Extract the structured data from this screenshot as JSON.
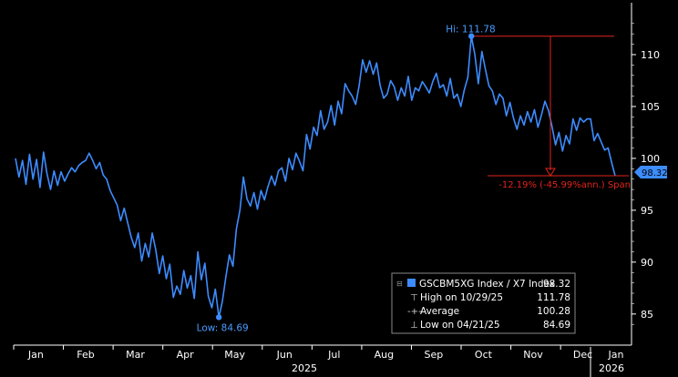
{
  "chart_data": {
    "type": "line",
    "ylim": [
      82,
      115
    ],
    "y_ticks": [
      "110",
      "105",
      "100",
      "95",
      "90",
      "85"
    ],
    "x_ticks": [
      "Jan",
      "Feb",
      "Mar",
      "Apr",
      "May",
      "Jun",
      "Jul",
      "Aug",
      "Sep",
      "Oct",
      "Nov",
      "Dec",
      "Jan"
    ],
    "year_labels": [
      "2025",
      "2026"
    ],
    "last_value_label": "98.32",
    "series": [
      {
        "name": "GSCBM5XG Index / X7 Index",
        "values": [
          100.0,
          98.2,
          99.8,
          97.5,
          100.4,
          98.0,
          99.9,
          97.2,
          100.6,
          98.5,
          97.0,
          98.8,
          97.4,
          98.7,
          97.8,
          98.5,
          99.1,
          98.7,
          99.3,
          99.6,
          99.8,
          100.5,
          99.8,
          99.0,
          99.6,
          98.4,
          98.0,
          96.9,
          96.2,
          95.5,
          94.0,
          95.2,
          93.8,
          92.4,
          91.4,
          92.8,
          90.1,
          91.8,
          90.5,
          92.8,
          91.2,
          88.9,
          90.6,
          88.4,
          89.8,
          86.6,
          87.7,
          86.9,
          89.2,
          87.5,
          88.7,
          86.5,
          91.0,
          88.3,
          89.9,
          86.7,
          85.6,
          87.4,
          84.69,
          86.2,
          88.6,
          90.7,
          89.6,
          93.2,
          95.0,
          98.2,
          96.1,
          95.4,
          96.7,
          95.1,
          96.9,
          96.0,
          97.3,
          98.3,
          97.4,
          98.8,
          99.1,
          97.8,
          100.0,
          98.9,
          100.5,
          99.7,
          98.8,
          102.3,
          100.9,
          103.0,
          102.2,
          104.6,
          102.8,
          103.5,
          105.1,
          103.2,
          105.5,
          104.3,
          107.2,
          106.5,
          106.0,
          105.2,
          107.0,
          109.5,
          108.3,
          109.4,
          108.1,
          109.2,
          107.0,
          105.8,
          106.2,
          107.5,
          106.9,
          105.6,
          106.8,
          106.0,
          107.9,
          105.6,
          106.8,
          106.5,
          107.4,
          106.9,
          106.3,
          107.4,
          108.2,
          106.8,
          107.1,
          106.0,
          107.7,
          105.8,
          106.2,
          105.0,
          106.6,
          107.8,
          111.78,
          110.0,
          107.2,
          110.3,
          108.6,
          107.0,
          106.5,
          105.2,
          106.2,
          105.8,
          104.1,
          105.4,
          103.9,
          102.8,
          104.1,
          103.2,
          104.5,
          103.5,
          104.7,
          103.0,
          104.2,
          105.5,
          104.6,
          103.1,
          101.3,
          102.5,
          100.7,
          102.2,
          101.4,
          103.8,
          102.7,
          103.9,
          103.5,
          103.8,
          103.8,
          101.7,
          102.4,
          101.6,
          100.8,
          101.0,
          99.6,
          98.32
        ]
      }
    ],
    "annotations": {
      "high_label": "Hi: 111.78",
      "low_label": "Low: 84.69",
      "span_label": "-12.19% (-45.99%ann.) Span"
    },
    "legend": {
      "title": "GSCBM5XG Index / X7 Index",
      "title_value": "98.32",
      "rows": [
        {
          "label": "High on 10/29/25",
          "value": "111.78"
        },
        {
          "label": "Average",
          "value": "100.28"
        },
        {
          "label": "Low on 04/21/25",
          "value": "84.69"
        }
      ]
    },
    "colors": {
      "line": "#3d8cff",
      "hi_low_text": "#4a9bff",
      "span": "#e0241c",
      "axis": "#ffffff",
      "background": "#000000"
    }
  }
}
